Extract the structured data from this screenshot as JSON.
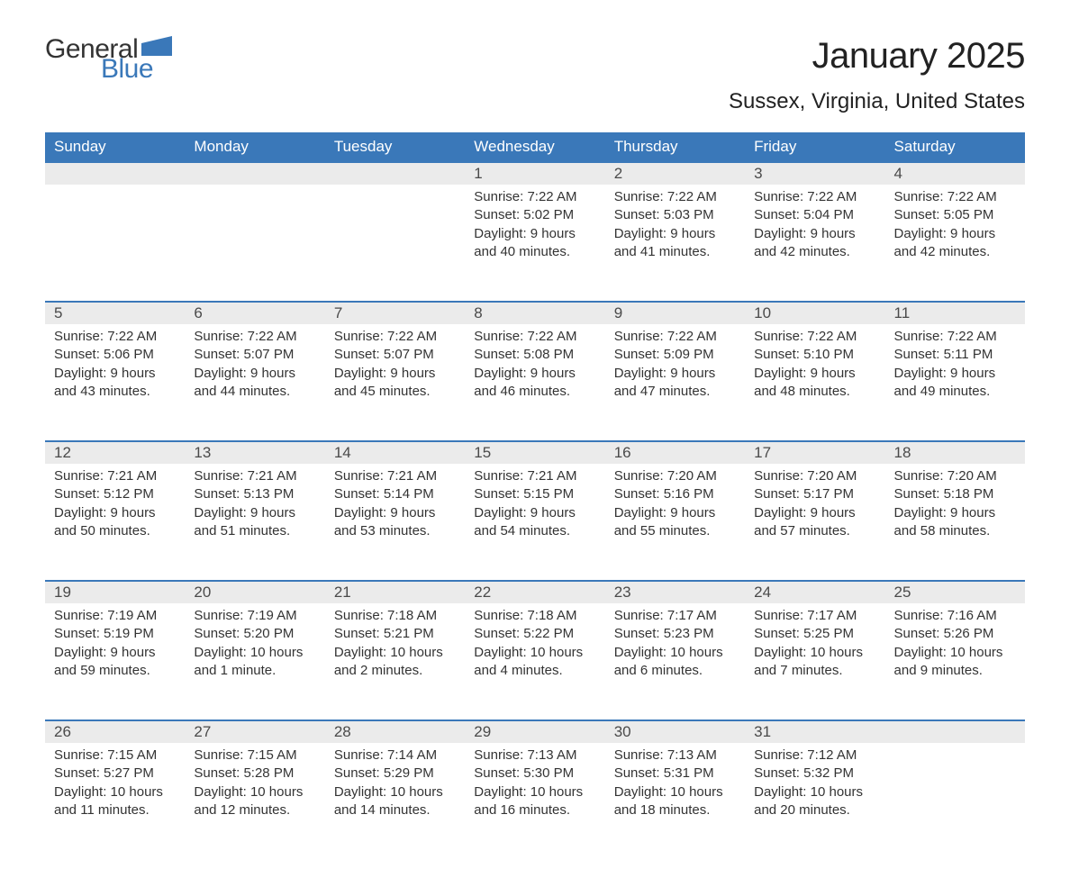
{
  "brand": {
    "word1": "General",
    "word2": "Blue",
    "accent_color": "#3a78b9"
  },
  "title": "January 2025",
  "location": "Sussex, Virginia, United States",
  "style": {
    "header_bg": "#3a78b9",
    "header_fg": "#ffffff",
    "daynum_bg": "#ebebeb",
    "body_fg": "#333333",
    "page_bg": "#ffffff",
    "title_fontsize": 40,
    "location_fontsize": 24,
    "th_fontsize": 17,
    "cell_fontsize": 15,
    "columns": 7
  },
  "weekdays": [
    "Sunday",
    "Monday",
    "Tuesday",
    "Wednesday",
    "Thursday",
    "Friday",
    "Saturday"
  ],
  "weeks": [
    [
      null,
      null,
      null,
      {
        "n": "1",
        "sr": "Sunrise: 7:22 AM",
        "ss": "Sunset: 5:02 PM",
        "d1": "Daylight: 9 hours",
        "d2": "and 40 minutes."
      },
      {
        "n": "2",
        "sr": "Sunrise: 7:22 AM",
        "ss": "Sunset: 5:03 PM",
        "d1": "Daylight: 9 hours",
        "d2": "and 41 minutes."
      },
      {
        "n": "3",
        "sr": "Sunrise: 7:22 AM",
        "ss": "Sunset: 5:04 PM",
        "d1": "Daylight: 9 hours",
        "d2": "and 42 minutes."
      },
      {
        "n": "4",
        "sr": "Sunrise: 7:22 AM",
        "ss": "Sunset: 5:05 PM",
        "d1": "Daylight: 9 hours",
        "d2": "and 42 minutes."
      }
    ],
    [
      {
        "n": "5",
        "sr": "Sunrise: 7:22 AM",
        "ss": "Sunset: 5:06 PM",
        "d1": "Daylight: 9 hours",
        "d2": "and 43 minutes."
      },
      {
        "n": "6",
        "sr": "Sunrise: 7:22 AM",
        "ss": "Sunset: 5:07 PM",
        "d1": "Daylight: 9 hours",
        "d2": "and 44 minutes."
      },
      {
        "n": "7",
        "sr": "Sunrise: 7:22 AM",
        "ss": "Sunset: 5:07 PM",
        "d1": "Daylight: 9 hours",
        "d2": "and 45 minutes."
      },
      {
        "n": "8",
        "sr": "Sunrise: 7:22 AM",
        "ss": "Sunset: 5:08 PM",
        "d1": "Daylight: 9 hours",
        "d2": "and 46 minutes."
      },
      {
        "n": "9",
        "sr": "Sunrise: 7:22 AM",
        "ss": "Sunset: 5:09 PM",
        "d1": "Daylight: 9 hours",
        "d2": "and 47 minutes."
      },
      {
        "n": "10",
        "sr": "Sunrise: 7:22 AM",
        "ss": "Sunset: 5:10 PM",
        "d1": "Daylight: 9 hours",
        "d2": "and 48 minutes."
      },
      {
        "n": "11",
        "sr": "Sunrise: 7:22 AM",
        "ss": "Sunset: 5:11 PM",
        "d1": "Daylight: 9 hours",
        "d2": "and 49 minutes."
      }
    ],
    [
      {
        "n": "12",
        "sr": "Sunrise: 7:21 AM",
        "ss": "Sunset: 5:12 PM",
        "d1": "Daylight: 9 hours",
        "d2": "and 50 minutes."
      },
      {
        "n": "13",
        "sr": "Sunrise: 7:21 AM",
        "ss": "Sunset: 5:13 PM",
        "d1": "Daylight: 9 hours",
        "d2": "and 51 minutes."
      },
      {
        "n": "14",
        "sr": "Sunrise: 7:21 AM",
        "ss": "Sunset: 5:14 PM",
        "d1": "Daylight: 9 hours",
        "d2": "and 53 minutes."
      },
      {
        "n": "15",
        "sr": "Sunrise: 7:21 AM",
        "ss": "Sunset: 5:15 PM",
        "d1": "Daylight: 9 hours",
        "d2": "and 54 minutes."
      },
      {
        "n": "16",
        "sr": "Sunrise: 7:20 AM",
        "ss": "Sunset: 5:16 PM",
        "d1": "Daylight: 9 hours",
        "d2": "and 55 minutes."
      },
      {
        "n": "17",
        "sr": "Sunrise: 7:20 AM",
        "ss": "Sunset: 5:17 PM",
        "d1": "Daylight: 9 hours",
        "d2": "and 57 minutes."
      },
      {
        "n": "18",
        "sr": "Sunrise: 7:20 AM",
        "ss": "Sunset: 5:18 PM",
        "d1": "Daylight: 9 hours",
        "d2": "and 58 minutes."
      }
    ],
    [
      {
        "n": "19",
        "sr": "Sunrise: 7:19 AM",
        "ss": "Sunset: 5:19 PM",
        "d1": "Daylight: 9 hours",
        "d2": "and 59 minutes."
      },
      {
        "n": "20",
        "sr": "Sunrise: 7:19 AM",
        "ss": "Sunset: 5:20 PM",
        "d1": "Daylight: 10 hours",
        "d2": "and 1 minute."
      },
      {
        "n": "21",
        "sr": "Sunrise: 7:18 AM",
        "ss": "Sunset: 5:21 PM",
        "d1": "Daylight: 10 hours",
        "d2": "and 2 minutes."
      },
      {
        "n": "22",
        "sr": "Sunrise: 7:18 AM",
        "ss": "Sunset: 5:22 PM",
        "d1": "Daylight: 10 hours",
        "d2": "and 4 minutes."
      },
      {
        "n": "23",
        "sr": "Sunrise: 7:17 AM",
        "ss": "Sunset: 5:23 PM",
        "d1": "Daylight: 10 hours",
        "d2": "and 6 minutes."
      },
      {
        "n": "24",
        "sr": "Sunrise: 7:17 AM",
        "ss": "Sunset: 5:25 PM",
        "d1": "Daylight: 10 hours",
        "d2": "and 7 minutes."
      },
      {
        "n": "25",
        "sr": "Sunrise: 7:16 AM",
        "ss": "Sunset: 5:26 PM",
        "d1": "Daylight: 10 hours",
        "d2": "and 9 minutes."
      }
    ],
    [
      {
        "n": "26",
        "sr": "Sunrise: 7:15 AM",
        "ss": "Sunset: 5:27 PM",
        "d1": "Daylight: 10 hours",
        "d2": "and 11 minutes."
      },
      {
        "n": "27",
        "sr": "Sunrise: 7:15 AM",
        "ss": "Sunset: 5:28 PM",
        "d1": "Daylight: 10 hours",
        "d2": "and 12 minutes."
      },
      {
        "n": "28",
        "sr": "Sunrise: 7:14 AM",
        "ss": "Sunset: 5:29 PM",
        "d1": "Daylight: 10 hours",
        "d2": "and 14 minutes."
      },
      {
        "n": "29",
        "sr": "Sunrise: 7:13 AM",
        "ss": "Sunset: 5:30 PM",
        "d1": "Daylight: 10 hours",
        "d2": "and 16 minutes."
      },
      {
        "n": "30",
        "sr": "Sunrise: 7:13 AM",
        "ss": "Sunset: 5:31 PM",
        "d1": "Daylight: 10 hours",
        "d2": "and 18 minutes."
      },
      {
        "n": "31",
        "sr": "Sunrise: 7:12 AM",
        "ss": "Sunset: 5:32 PM",
        "d1": "Daylight: 10 hours",
        "d2": "and 20 minutes."
      },
      null
    ]
  ]
}
